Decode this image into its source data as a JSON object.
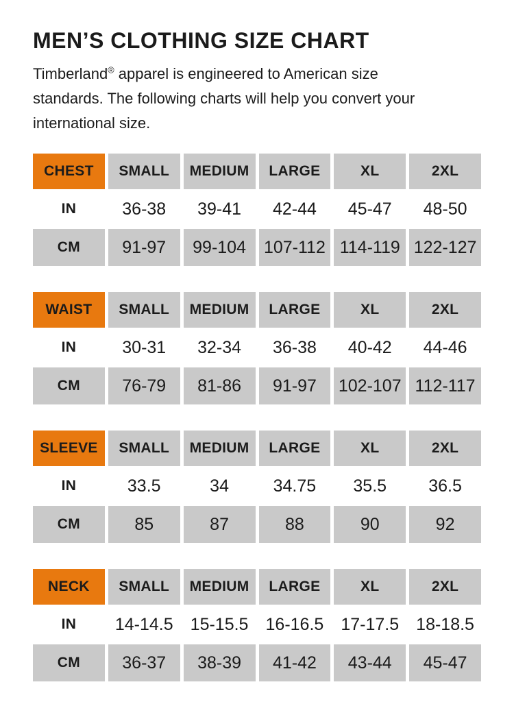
{
  "page": {
    "title": "MEN’S CLOTHING SIZE CHART"
  },
  "intro": {
    "brand": "Timberland",
    "reg_mark": "®",
    "line1_rest": " apparel is engineered to American size",
    "line2": "standards. The following charts will help you convert your",
    "line3": "international size."
  },
  "colors": {
    "accent_orange": "#E8790F",
    "cell_gray": "#C9C9C9",
    "text": "#1B1B1B"
  },
  "size_labels": [
    "SMALL",
    "MEDIUM",
    "LARGE",
    "XL",
    "2XL"
  ],
  "tables": [
    {
      "name": "CHEST",
      "rows": [
        {
          "unit": "IN",
          "values": [
            "36-38",
            "39-41",
            "42-44",
            "45-47",
            "48-50"
          ]
        },
        {
          "unit": "CM",
          "values": [
            "91-97",
            "99-104",
            "107-112",
            "114-119",
            "122-127"
          ]
        }
      ]
    },
    {
      "name": "WAIST",
      "rows": [
        {
          "unit": "IN",
          "values": [
            "30-31",
            "32-34",
            "36-38",
            "40-42",
            "44-46"
          ]
        },
        {
          "unit": "CM",
          "values": [
            "76-79",
            "81-86",
            "91-97",
            "102-107",
            "112-117"
          ]
        }
      ]
    },
    {
      "name": "SLEEVE",
      "rows": [
        {
          "unit": "IN",
          "values": [
            "33.5",
            "34",
            "34.75",
            "35.5",
            "36.5"
          ]
        },
        {
          "unit": "CM",
          "values": [
            "85",
            "87",
            "88",
            "90",
            "92"
          ]
        }
      ]
    },
    {
      "name": "NECK",
      "rows": [
        {
          "unit": "IN",
          "values": [
            "14-14.5",
            "15-15.5",
            "16-16.5",
            "17-17.5",
            "18-18.5"
          ]
        },
        {
          "unit": "CM",
          "values": [
            "36-37",
            "38-39",
            "41-42",
            "43-44",
            "45-47"
          ]
        }
      ]
    }
  ]
}
